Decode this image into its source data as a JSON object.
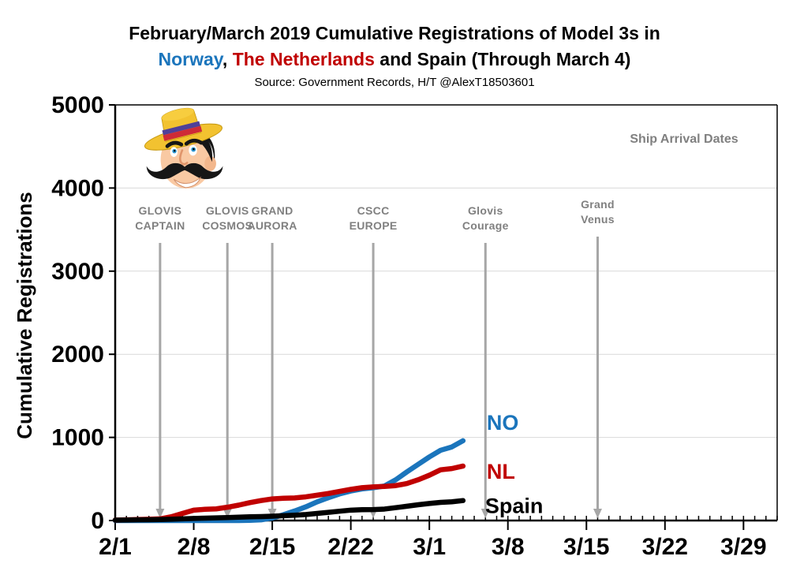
{
  "page": {
    "title_line1": "February/March 2019 Cumulative Registrations of Model 3s in",
    "title_line2_parts": {
      "norway": "Norway",
      "comma": ", ",
      "netherlands": "The Netherlands",
      "rest": " and Spain (Through March 4)"
    },
    "subtitle": "Source: Government Records, H/T @AlexT18503601"
  },
  "colors": {
    "norway_blue": "#1B75BC",
    "netherlands_red": "#C00000",
    "spain_black": "#000000",
    "annotation_gray": "#A6A6A6",
    "label_gray": "#808080",
    "gridline_gray": "#D9D9D9"
  },
  "chart_data": {
    "type": "line",
    "title": "February/March 2019 Cumulative Registrations of Model 3s in Norway, The Netherlands and Spain (Through March 4)",
    "subtitle": "Source: Government Records, H/T @AlexT18503601",
    "xlabel": "",
    "ylabel": "Cumulative Registrations",
    "ylim": [
      0,
      5000
    ],
    "y_ticks": [
      0,
      1000,
      2000,
      3000,
      4000,
      5000
    ],
    "x_tick_labels": [
      "2/1",
      "2/8",
      "2/15",
      "2/22",
      "3/1",
      "3/8",
      "3/15",
      "3/22",
      "3/29"
    ],
    "x_tick_days": [
      0,
      7,
      14,
      21,
      28,
      35,
      42,
      49,
      56
    ],
    "x_axis_total_days": 59,
    "grid": "horizontal",
    "legend_position": "labels at line ends",
    "dates": [
      "2/1",
      "2/2",
      "2/3",
      "2/4",
      "2/5",
      "2/6",
      "2/7",
      "2/8",
      "2/9",
      "2/10",
      "2/11",
      "2/12",
      "2/13",
      "2/14",
      "2/15",
      "2/16",
      "2/17",
      "2/18",
      "2/19",
      "2/20",
      "2/21",
      "2/22",
      "2/23",
      "2/24",
      "2/25",
      "2/26",
      "2/27",
      "2/28",
      "3/1",
      "3/2",
      "3/3",
      "3/4"
    ],
    "series": [
      {
        "name": "Norway",
        "label": "NO",
        "color": "#1B75BC",
        "values": [
          0,
          0,
          0,
          0,
          0,
          0,
          0,
          0,
          0,
          0,
          0,
          0,
          2,
          8,
          30,
          70,
          115,
          165,
          225,
          275,
          320,
          355,
          380,
          395,
          415,
          490,
          585,
          675,
          765,
          845,
          885,
          960
        ]
      },
      {
        "name": "The Netherlands",
        "label": "NL",
        "color": "#C00000",
        "values": [
          5,
          8,
          12,
          15,
          20,
          45,
          85,
          125,
          135,
          140,
          160,
          185,
          215,
          240,
          260,
          268,
          272,
          285,
          305,
          325,
          350,
          375,
          395,
          405,
          410,
          420,
          445,
          490,
          545,
          610,
          625,
          655
        ]
      },
      {
        "name": "Spain",
        "label": "Spain",
        "color": "#000000",
        "values": [
          5,
          6,
          8,
          10,
          12,
          15,
          20,
          25,
          28,
          32,
          36,
          40,
          45,
          48,
          52,
          58,
          64,
          72,
          85,
          98,
          112,
          125,
          130,
          132,
          138,
          155,
          172,
          190,
          205,
          218,
          225,
          240
        ]
      }
    ],
    "annotations_heading": "Ship Arrival Dates",
    "annotations": [
      {
        "lines": [
          "GLOVIS",
          "CAPTAIN"
        ],
        "day": 4
      },
      {
        "lines": [
          "GLOVIS",
          "COSMOS"
        ],
        "day": 10
      },
      {
        "lines": [
          "GRAND",
          "AURORA"
        ],
        "day": 14
      },
      {
        "lines": [
          "CSCC",
          "EUROPE"
        ],
        "day": 23
      },
      {
        "lines": [
          "Glovis",
          "Courage"
        ],
        "day": 33
      },
      {
        "lines": [
          "Grand",
          "Venus"
        ],
        "day": 43,
        "label_dy": -8
      }
    ]
  }
}
